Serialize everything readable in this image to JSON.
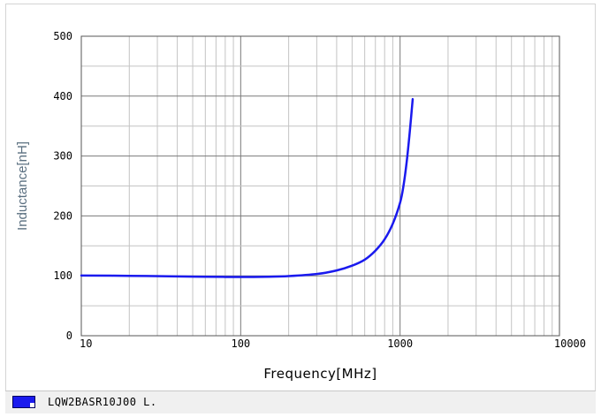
{
  "chart_data": {
    "type": "line",
    "xscale": "log",
    "xlim": [
      10,
      10000
    ],
    "ylim": [
      0,
      500
    ],
    "xticks": [
      "10",
      "100",
      "1000",
      "10000"
    ],
    "yticks": [
      "0",
      "100",
      "200",
      "300",
      "400",
      "500"
    ],
    "xlabel": "Frequency[MHz]",
    "ylabel": "Inductance[nH]",
    "grid": true,
    "legend_position": "bottom-left",
    "series": [
      {
        "name": "LQW2BASR10J00  L.",
        "color": "#1a1aee",
        "x": [
          10,
          20,
          40,
          60,
          100,
          150,
          200,
          300,
          400,
          500,
          600,
          700,
          800,
          900,
          1000,
          1050,
          1100,
          1150,
          1200
        ],
        "y": [
          100.5,
          100,
          99,
          98.5,
          98,
          98.5,
          99.5,
          103,
          109,
          117,
          127,
          142,
          161,
          187,
          222,
          250,
          290,
          340,
          395
        ]
      }
    ]
  }
}
